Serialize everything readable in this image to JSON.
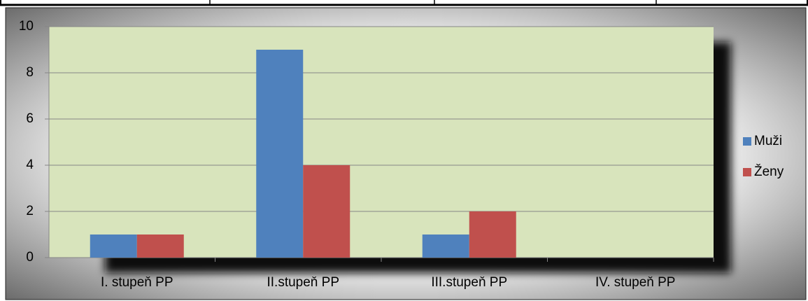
{
  "chart_data": {
    "type": "bar",
    "categories": [
      "I. stupeň PP",
      "II.stupeň PP",
      "III.stupeň PP",
      "IV. stupeň PP"
    ],
    "series": [
      {
        "name": "Muži",
        "color": "#4f81bd",
        "values": [
          1,
          9,
          1,
          0
        ]
      },
      {
        "name": "Ženy",
        "color": "#c0504d",
        "values": [
          1,
          4,
          2,
          0
        ]
      }
    ],
    "ylim": [
      0,
      10
    ],
    "yticks": [
      0,
      2,
      4,
      6,
      8,
      10
    ],
    "grid": true,
    "legend": "right"
  }
}
